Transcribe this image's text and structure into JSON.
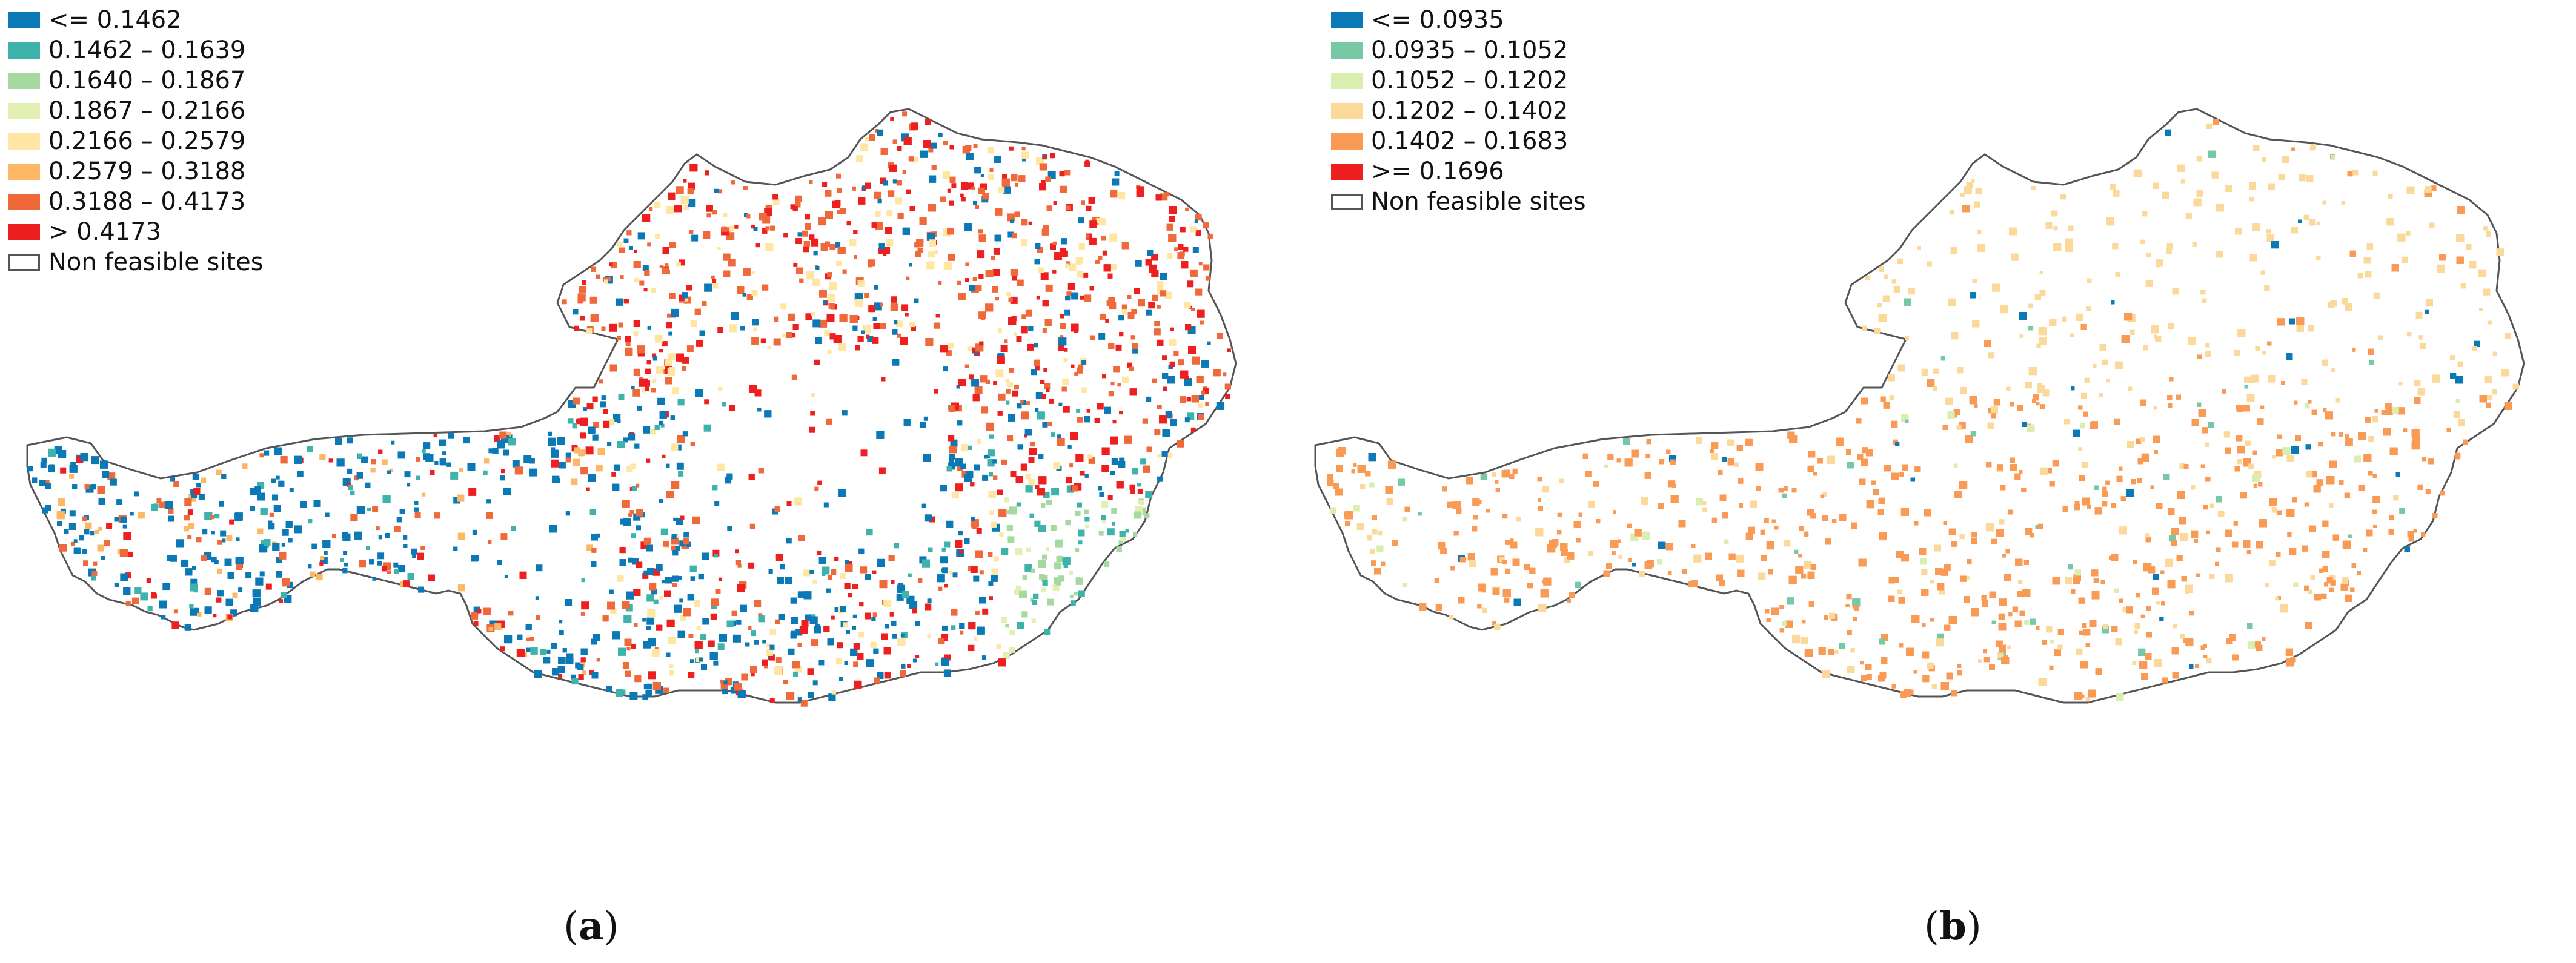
{
  "figure": {
    "panels": [
      {
        "caption": "a",
        "legend": [
          {
            "label": "<= 0.1462",
            "color": "#0a79b5"
          },
          {
            "label": "0.1462 – 0.1639",
            "color": "#3db3ab"
          },
          {
            "label": "0.1640 – 0.1867",
            "color": "#a6d9a0"
          },
          {
            "label": "0.1867 – 0.2166",
            "color": "#e2f0b4"
          },
          {
            "label": "0.2166 – 0.2579",
            "color": "#ffe6a3"
          },
          {
            "label": "0.2579 – 0.3188",
            "color": "#fdb866"
          },
          {
            "label": "0.3188 – 0.4173",
            "color": "#f0693a"
          },
          {
            "label": "> 0.4173",
            "color": "#ee1f1f"
          },
          {
            "label": "Non feasible sites",
            "color": "#ffffff",
            "outline": true
          }
        ]
      },
      {
        "caption": "b",
        "legend": [
          {
            "label": "<= 0.0935",
            "color": "#0a79b5"
          },
          {
            "label": "0.0935 – 0.1052",
            "color": "#77c8a4"
          },
          {
            "label": "0.1052 – 0.1202",
            "color": "#d9efb0"
          },
          {
            "label": "0.1202 – 0.1402",
            "color": "#fbd99a"
          },
          {
            "label": "0.1402 – 0.1683",
            "color": "#f99a55"
          },
          {
            "label": ">= 0.1696",
            "color": "#ee1f1f"
          },
          {
            "label": "Non feasible sites",
            "color": "#ffffff",
            "outline": true
          }
        ]
      }
    ]
  }
}
